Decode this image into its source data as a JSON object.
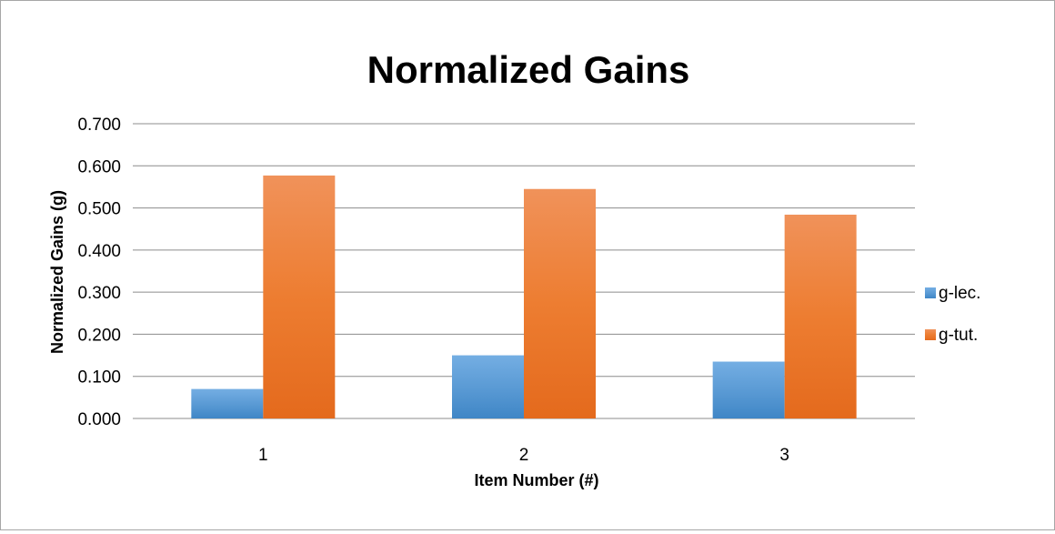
{
  "chart_data": {
    "type": "bar",
    "title": "Normalized Gains",
    "xlabel": "Item Number (#)",
    "ylabel": "Normalized Gains (g)",
    "categories": [
      "1",
      "2",
      "3"
    ],
    "series": [
      {
        "name": "g-lec.",
        "values": [
          0.07,
          0.15,
          0.135
        ],
        "color": "#5b9bd5",
        "color_light": "#74aee3",
        "color_dark": "#3f86c6"
      },
      {
        "name": "g-tut.",
        "values": [
          0.577,
          0.545,
          0.484
        ],
        "color": "#ed7d31",
        "color_light": "#f0925a",
        "color_dark": "#e46a1d"
      }
    ],
    "ylim": [
      0,
      0.7
    ],
    "ytick_step": 0.1,
    "ytick_labels": [
      "0.000",
      "0.100",
      "0.200",
      "0.300",
      "0.400",
      "0.500",
      "0.600",
      "0.700"
    ],
    "grid": true,
    "grid_color": "#8c8c8c",
    "legend_position": "right"
  }
}
